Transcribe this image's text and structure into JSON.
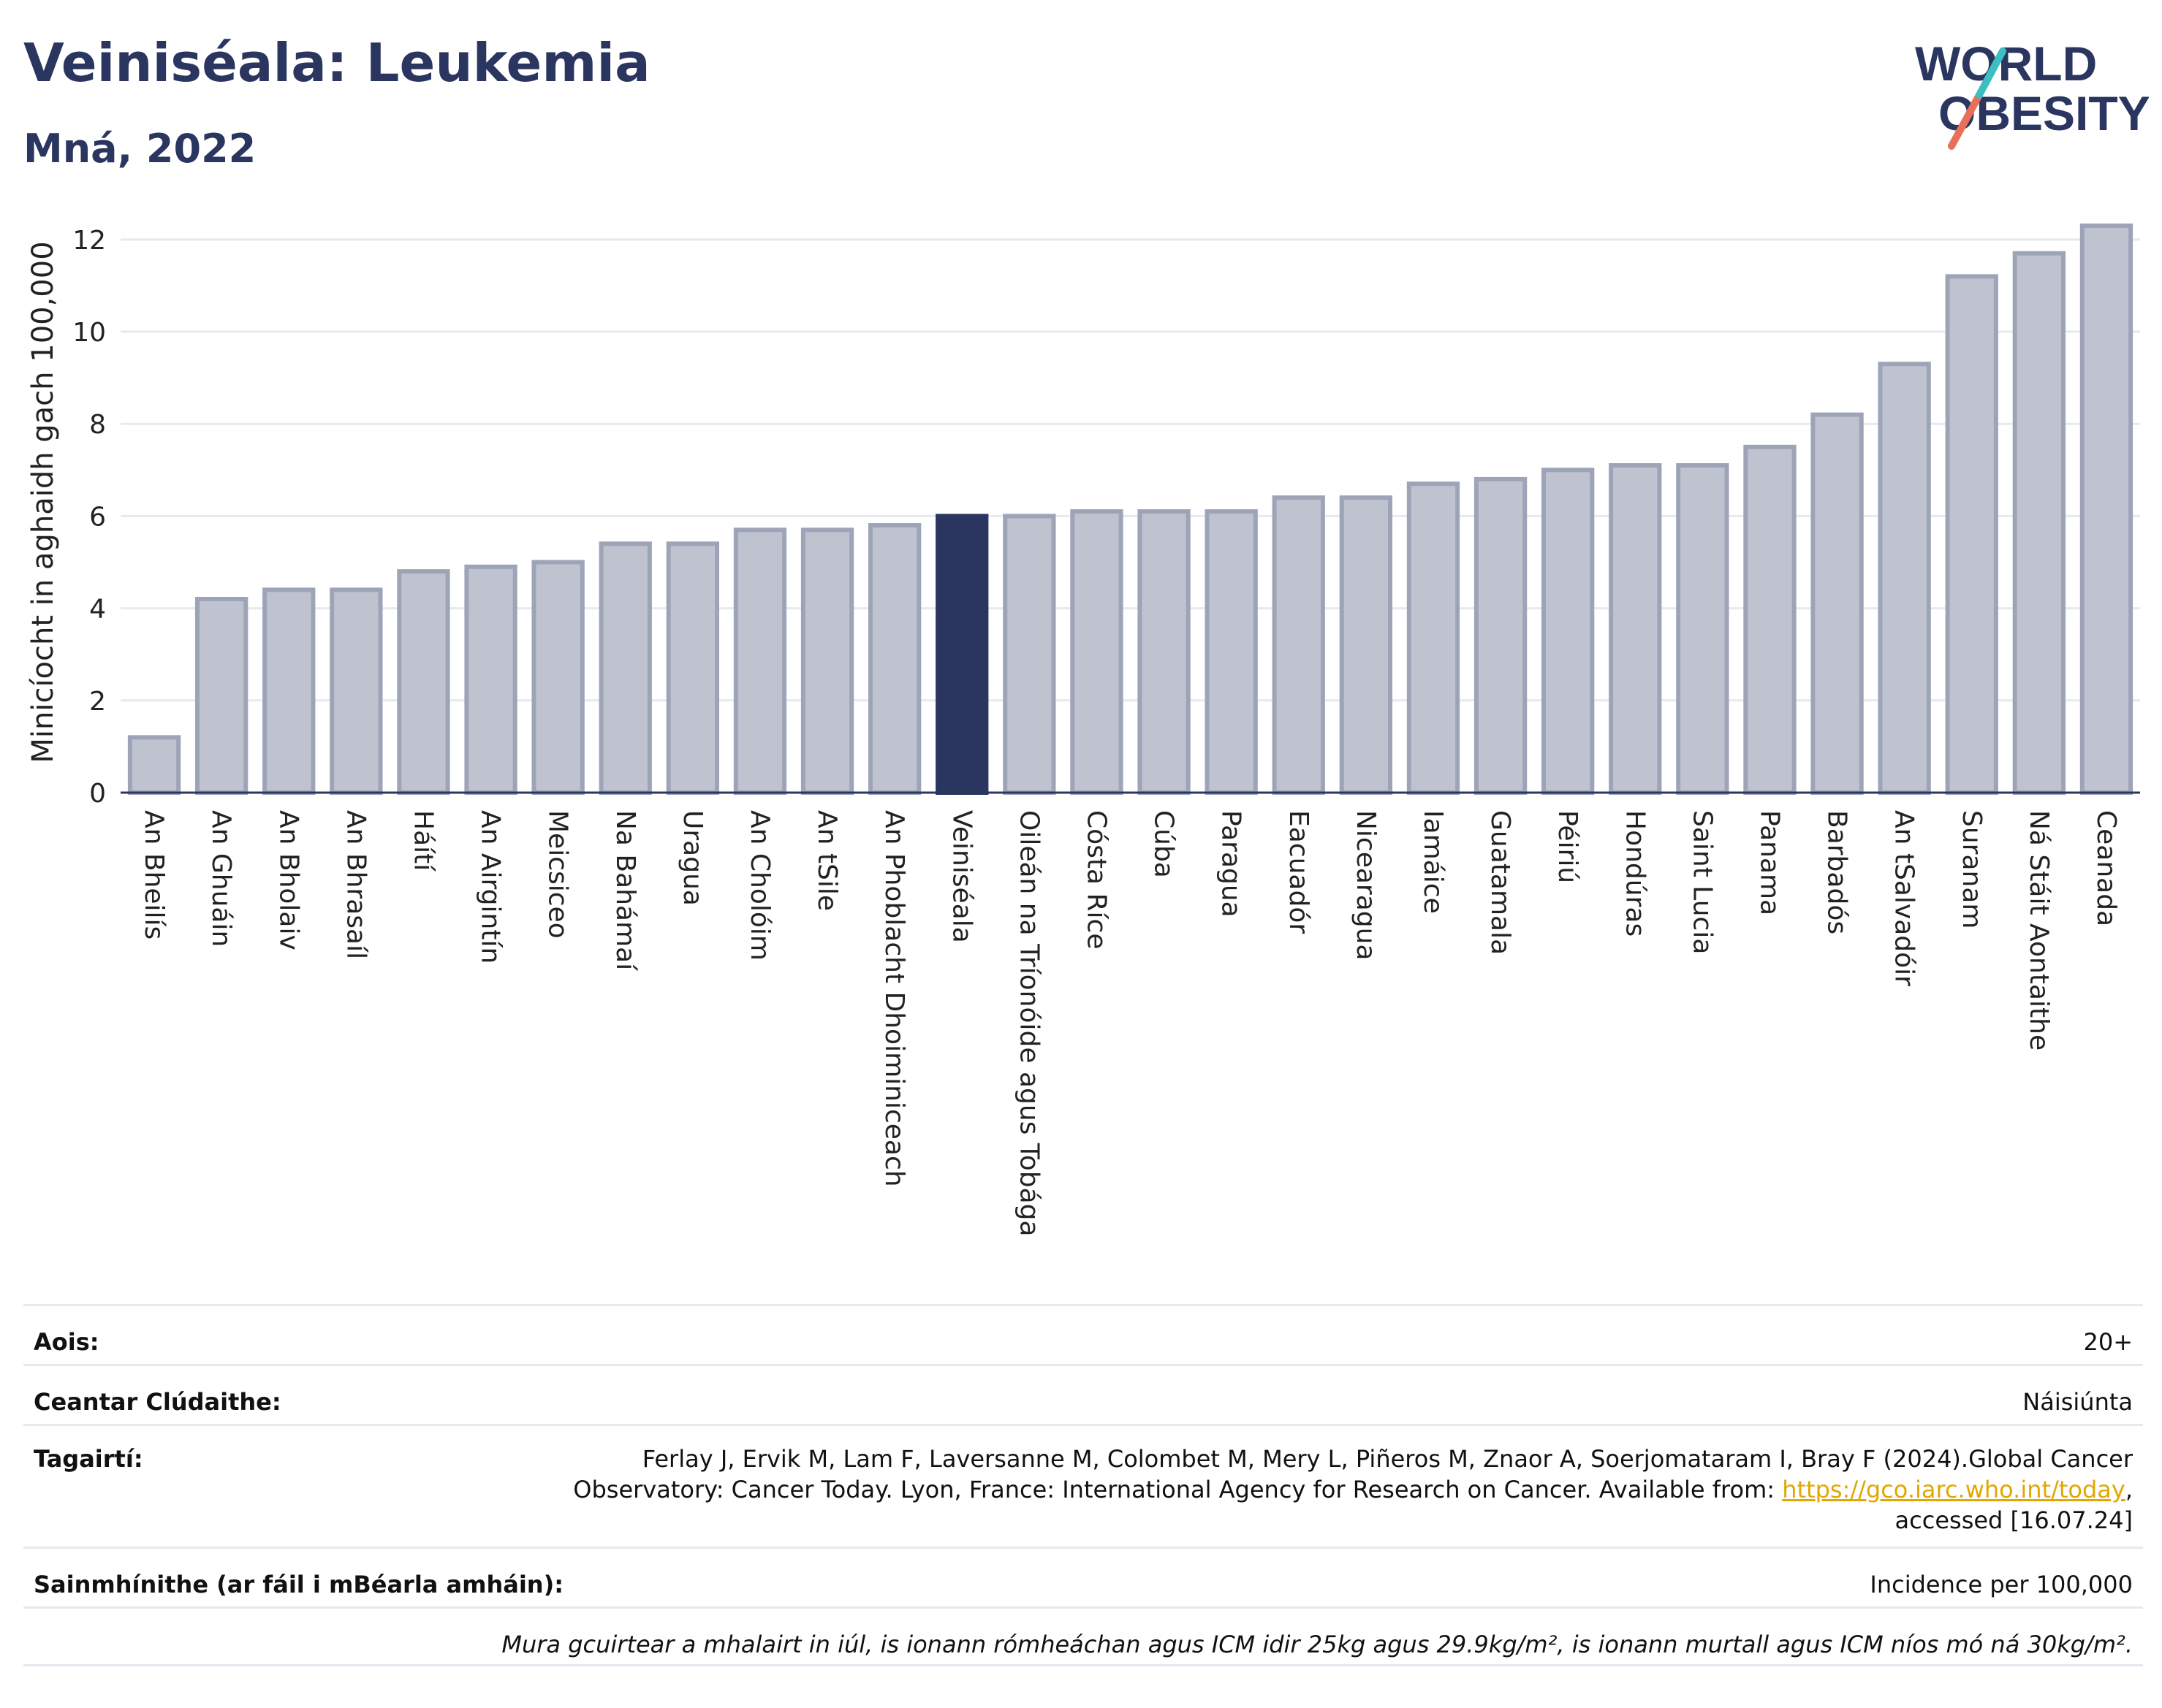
{
  "title": "Veiniséala: Leukemia",
  "subtitle": "Mná, 2022",
  "logo": {
    "line1": "WORLD",
    "line2": "OBESITY"
  },
  "colors": {
    "highlight": "#2a3560",
    "bar": "#bfc3d0",
    "bar_edge": "#9ea4b8",
    "title": "#2a3560",
    "link": "#e0a800"
  },
  "chart_data": {
    "type": "bar",
    "ylabel": "Minicíocht in aghaidh gach 100,000",
    "xlabel": "",
    "ylim": [
      0,
      12.6
    ],
    "yticks": [
      0,
      2,
      4,
      6,
      8,
      10,
      12
    ],
    "grid": true,
    "highlight": "Veiniséala",
    "categories": [
      "An Bheilís",
      "An Ghuáin",
      "An Bholaiv",
      "An Bhrasaíl",
      "Háítí",
      "An Airgintín",
      "Meicsiceo",
      "Na Bahámaí",
      "Uragua",
      "An Cholóim",
      "An tSile",
      "An Phoblacht Dhoiminiceach",
      "Veiniséala",
      "Oileán na Tríonóide agus Tobága",
      "Cósta Ríce",
      "Cúba",
      "Paragua",
      "Eacuadór",
      "Nicearagua",
      "Iamáice",
      "Guatamala",
      "Péiriú",
      "Hondúras",
      "Saint Lucia",
      "Panama",
      "Barbadós",
      "An tSalvadóir",
      "Suranam",
      "Ná Stáit Aontaithe",
      "Ceanada"
    ],
    "values": [
      1.2,
      4.2,
      4.4,
      4.4,
      4.8,
      4.9,
      5.0,
      5.4,
      5.4,
      5.7,
      5.7,
      5.8,
      6.0,
      6.0,
      6.1,
      6.1,
      6.1,
      6.4,
      6.4,
      6.7,
      6.8,
      7.0,
      7.1,
      7.1,
      7.5,
      8.2,
      9.3,
      11.2,
      11.7,
      12.3
    ]
  },
  "info": {
    "age_label": "Aois:",
    "age_value": "20+",
    "area_label": "Ceantar Clúdaithe:",
    "area_value": "Náisiúnta",
    "ref_label": "Tagairtí:",
    "ref_text_1": "Ferlay J, Ervik M, Lam F, Laversanne M, Colombet M, Mery L, Piñeros M, Znaor A, Soerjomataram I, Bray F (2024).Global Cancer",
    "ref_text_2": "Observatory: Cancer Today. Lyon, France: International Agency for Research on Cancer. Available from: ",
    "ref_link": "https://gco.iarc.who.int/today",
    "ref_text_3": ",",
    "ref_text_4": "accessed [16.07.24]",
    "def_label": "Sainmhínithe (ar fáil i mBéarla amháin):",
    "def_value": "Incidence per 100,000",
    "note": "Mura gcuirtear a mhalairt in iúl, is ionann rómheáchan agus ICM idir 25kg agus 29.9kg/m², is ionann murtall agus ICM níos mó ná 30kg/m²."
  }
}
